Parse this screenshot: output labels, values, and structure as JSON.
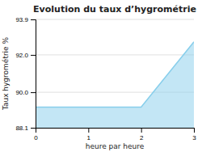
{
  "chart_data": {
    "type": "area",
    "title": "Evolution du taux d’hygrométrie",
    "x_label": "heure par heure",
    "y_label": "Taux hygrométrie %",
    "x": [
      0,
      1,
      2,
      3
    ],
    "values": [
      89.2,
      89.2,
      89.2,
      92.7
    ],
    "xlim": [
      0,
      3
    ],
    "ylim": [
      88.1,
      93.9
    ],
    "xticks": [
      0,
      1,
      2,
      3
    ],
    "yticks": [
      88.1,
      {
        "value": 90,
        "label": "90.0"
      },
      {
        "value": 92,
        "label": "92.0"
      },
      93.9
    ],
    "color": "#87ceeb",
    "grid": "y"
  }
}
